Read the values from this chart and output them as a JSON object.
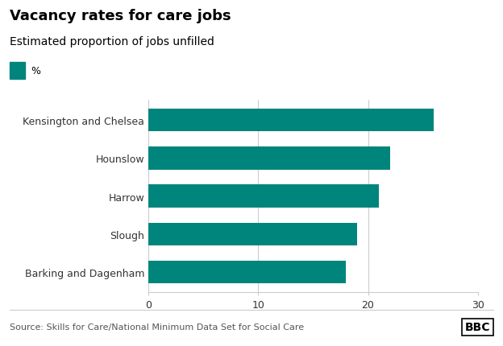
{
  "title": "Vacancy rates for care jobs",
  "subtitle": "Estimated proportion of jobs unfilled",
  "legend_label": "%",
  "categories": [
    "Kensington and Chelsea",
    "Hounslow",
    "Harrow",
    "Slough",
    "Barking and Dagenham"
  ],
  "values": [
    26,
    22,
    21,
    19,
    18
  ],
  "bar_color": "#00857d",
  "xlim": [
    0,
    30
  ],
  "xticks": [
    0,
    10,
    20,
    30
  ],
  "source": "Source: Skills for Care/National Minimum Data Set for Social Care",
  "background_color": "#ffffff",
  "title_fontsize": 13,
  "subtitle_fontsize": 10,
  "tick_fontsize": 9,
  "label_fontsize": 9,
  "source_fontsize": 8,
  "bbc_fontsize": 10
}
